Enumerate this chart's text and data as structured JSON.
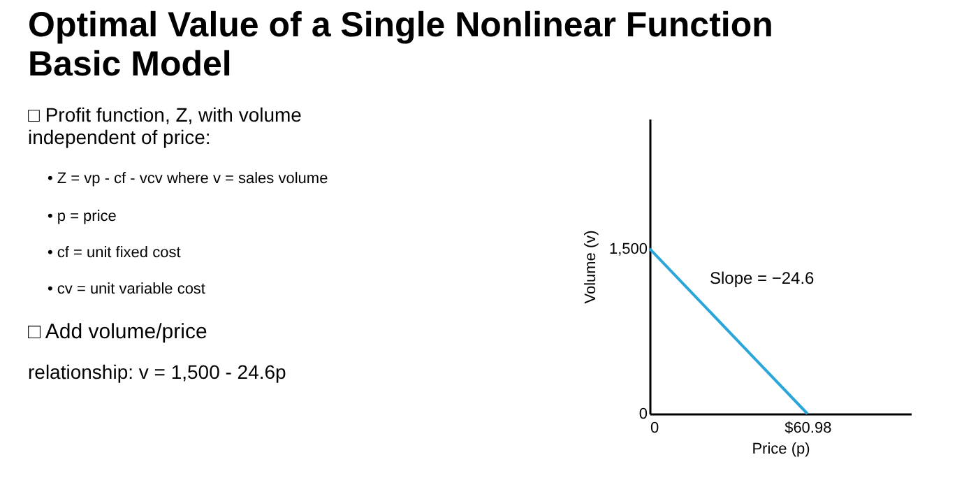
{
  "chart_data": {
    "type": "line",
    "title": "Optimal Value of a Single Nonlinear Function Basic Model",
    "x": [
      0,
      60.98
    ],
    "series": [
      {
        "color": "#2aa6d9",
        "values": [
          1500,
          0
        ]
      }
    ],
    "xlim": [
      0,
      101
    ],
    "ylim": [
      0,
      2680
    ],
    "xticks": [
      0,
      {
        "value": 60.98,
        "label": "$60.98"
      }
    ],
    "yticks": [
      0,
      {
        "value": 1500,
        "label": "1,500"
      }
    ],
    "xlabel": "Price (p)",
    "ylabel": "Volume (v)",
    "grid": false,
    "marker": "none",
    "line_style": "solid",
    "annotations": [
      "□ Profit function, Z, with volume independent of price:",
      "• Z = vp - cf - vcv where v = sales volume",
      "• p = price",
      "• cf = unit fixed cost",
      "• cv = unit variable cost",
      "□ Add volume/price",
      "relationship: v = 1,500 - 24.6p",
      "Slope = −24.6"
    ]
  }
}
